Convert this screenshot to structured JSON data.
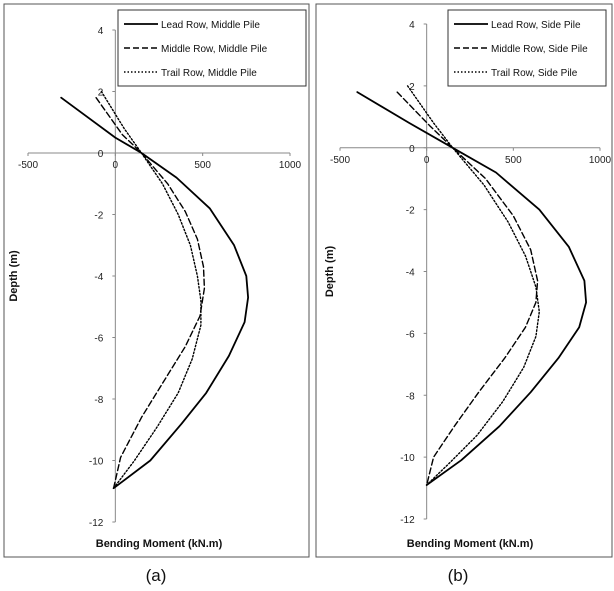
{
  "chart_data": [
    {
      "type": "line",
      "caption": "(a)",
      "xlabel": "Bending Moment (kN.m)",
      "ylabel": "Depth (m)",
      "xlim": [
        -500,
        1000
      ],
      "ylim": [
        -12,
        4
      ],
      "x_ticks": [
        "-500",
        "0",
        "500",
        "1000"
      ],
      "y_ticks": [
        "4",
        "2",
        "0",
        "-2",
        "-4",
        "-6",
        "-8",
        "-10",
        "-12"
      ],
      "legend": "top-right",
      "series": [
        {
          "name": "Lead Row, Middle Pile",
          "style": "solid",
          "points": [
            [
              -310,
              1.8
            ],
            [
              0,
              0.5
            ],
            [
              150,
              0
            ],
            [
              350,
              -0.8
            ],
            [
              540,
              -1.8
            ],
            [
              680,
              -3.0
            ],
            [
              750,
              -4.0
            ],
            [
              760,
              -4.7
            ],
            [
              740,
              -5.5
            ],
            [
              650,
              -6.6
            ],
            [
              520,
              -7.8
            ],
            [
              380,
              -8.8
            ],
            [
              200,
              -10.0
            ],
            [
              -10,
              -10.9
            ]
          ]
        },
        {
          "name": "Middle Row, Middle Pile",
          "style": "dashed",
          "points": [
            [
              -110,
              1.8
            ],
            [
              40,
              0.6
            ],
            [
              150,
              0
            ],
            [
              300,
              -1.0
            ],
            [
              400,
              -1.9
            ],
            [
              470,
              -2.8
            ],
            [
              505,
              -3.7
            ],
            [
              510,
              -4.4
            ],
            [
              485,
              -5.3
            ],
            [
              400,
              -6.3
            ],
            [
              280,
              -7.4
            ],
            [
              150,
              -8.6
            ],
            [
              30,
              -9.9
            ],
            [
              -10,
              -10.9
            ]
          ]
        },
        {
          "name": "Trail Row, Middle Pile",
          "style": "dotted",
          "points": [
            [
              -80,
              2.0
            ],
            [
              50,
              0.8
            ],
            [
              150,
              0
            ],
            [
              270,
              -1.0
            ],
            [
              360,
              -2.0
            ],
            [
              430,
              -3.0
            ],
            [
              470,
              -4.0
            ],
            [
              490,
              -4.8
            ],
            [
              490,
              -5.6
            ],
            [
              440,
              -6.7
            ],
            [
              360,
              -7.8
            ],
            [
              240,
              -8.9
            ],
            [
              110,
              -10.0
            ],
            [
              -10,
              -10.9
            ]
          ]
        }
      ]
    },
    {
      "type": "line",
      "caption": "(b)",
      "xlabel": "Bending Moment (kN.m)",
      "ylabel": "Depth (m)",
      "xlim": [
        -500,
        1000
      ],
      "ylim": [
        -12,
        4
      ],
      "x_ticks": [
        "-500",
        "0",
        "500",
        "1000"
      ],
      "y_ticks": [
        "4",
        "2",
        "0",
        "-2",
        "-4",
        "-6",
        "-8",
        "-10",
        "-12"
      ],
      "legend": "top-right",
      "series": [
        {
          "name": "Lead Row, Side Pile",
          "style": "solid",
          "points": [
            [
              -400,
              1.8
            ],
            [
              -100,
              0.8
            ],
            [
              150,
              0
            ],
            [
              400,
              -0.8
            ],
            [
              650,
              -2.0
            ],
            [
              820,
              -3.2
            ],
            [
              910,
              -4.3
            ],
            [
              920,
              -5.0
            ],
            [
              880,
              -5.8
            ],
            [
              760,
              -6.8
            ],
            [
              600,
              -7.9
            ],
            [
              420,
              -9.0
            ],
            [
              200,
              -10.1
            ],
            [
              0,
              -10.9
            ]
          ]
        },
        {
          "name": "Middle Row, Side Pile",
          "style": "dashed",
          "points": [
            [
              -170,
              1.8
            ],
            [
              20,
              0.7
            ],
            [
              150,
              0
            ],
            [
              340,
              -1.0
            ],
            [
              500,
              -2.2
            ],
            [
              600,
              -3.3
            ],
            [
              640,
              -4.3
            ],
            [
              630,
              -5.0
            ],
            [
              570,
              -5.8
            ],
            [
              450,
              -6.8
            ],
            [
              300,
              -7.9
            ],
            [
              160,
              -9.0
            ],
            [
              40,
              -10.0
            ],
            [
              0,
              -10.9
            ]
          ]
        },
        {
          "name": "Trail Row, Side Pile",
          "style": "dotted",
          "points": [
            [
              -110,
              2.0
            ],
            [
              40,
              0.8
            ],
            [
              150,
              0
            ],
            [
              330,
              -1.2
            ],
            [
              470,
              -2.4
            ],
            [
              570,
              -3.5
            ],
            [
              630,
              -4.5
            ],
            [
              650,
              -5.3
            ],
            [
              630,
              -6.1
            ],
            [
              560,
              -7.1
            ],
            [
              440,
              -8.2
            ],
            [
              290,
              -9.3
            ],
            [
              130,
              -10.2
            ],
            [
              0,
              -10.9
            ]
          ]
        }
      ]
    }
  ]
}
